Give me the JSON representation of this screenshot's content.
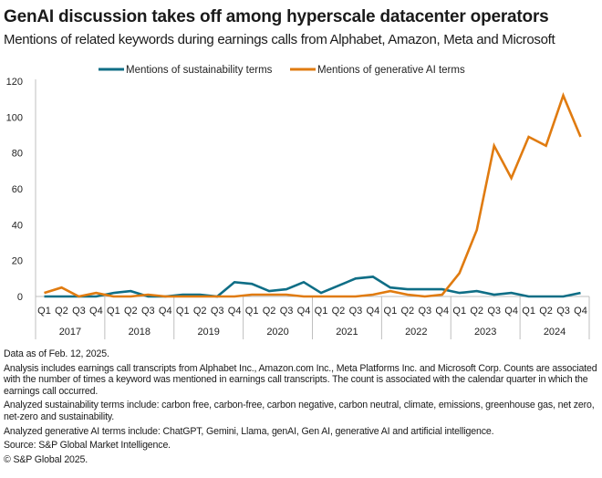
{
  "chart_data": {
    "type": "line",
    "title": "GenAI discussion takes off among hyperscale datacenter operators",
    "subtitle": "Mentions of related keywords during earnings calls from Alphabet, Amazon, Meta and Microsoft",
    "xlabel": "",
    "ylabel": "",
    "ylim": [
      0,
      120
    ],
    "yticks": [
      0,
      20,
      40,
      60,
      80,
      100,
      120
    ],
    "years": [
      "2017",
      "2018",
      "2019",
      "2020",
      "2021",
      "2022",
      "2023",
      "2024"
    ],
    "quarters": [
      "Q1",
      "Q2",
      "Q3",
      "Q4"
    ],
    "legend_position": "top",
    "grid": false,
    "series": [
      {
        "name": "Mentions of sustainability terms",
        "color": "#0f6e86",
        "values": [
          0,
          0,
          0,
          0,
          2,
          3,
          0,
          0,
          1,
          1,
          0,
          8,
          7,
          3,
          4,
          8,
          2,
          6,
          10,
          11,
          5,
          4,
          4,
          4,
          2,
          3,
          1,
          2,
          0,
          0,
          0,
          2
        ]
      },
      {
        "name": "Mentions of generative AI terms",
        "color": "#e07b10",
        "values": [
          2,
          5,
          0,
          2,
          0,
          0,
          1,
          0,
          0,
          0,
          0,
          0,
          1,
          1,
          1,
          0,
          0,
          0,
          0,
          1,
          3,
          1,
          0,
          1,
          13,
          37,
          84,
          66,
          89,
          84,
          112,
          89
        ]
      }
    ]
  },
  "notes": [
    "Data as of Feb. 12, 2025.",
    "Analysis includes earnings call transcripts from Alphabet Inc., Amazon.com Inc., Meta Platforms Inc. and Microsoft Corp. Counts are associated with the number of times a keyword was mentioned in earnings call transcripts. The count is associated with the calendar quarter in which the earnings call occurred.",
    "Analyzed sustainability terms include: carbon free, carbon-free, carbon negative, carbon neutral, climate, emissions, greenhouse gas, net zero, net-zero and sustainability.",
    "Analyzed generative AI terms include: ChatGPT, Gemini, Llama, genAI, Gen AI, generative AI and artificial intelligence.",
    "Source: S&P Global Market Intelligence.",
    "© S&P Global 2025."
  ]
}
